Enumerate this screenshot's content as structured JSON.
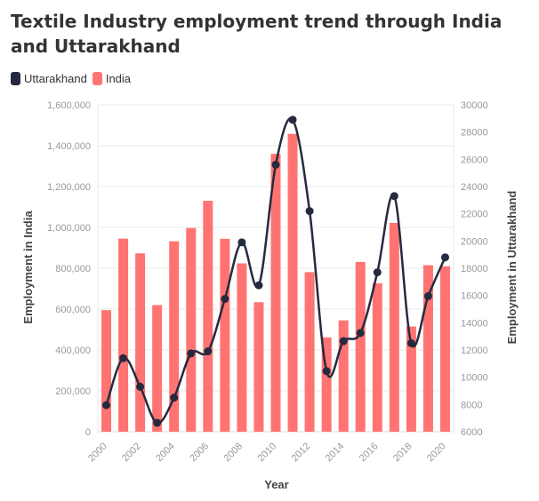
{
  "chart_data": {
    "type": "bar",
    "title": "Textile Industry employment trend through India and Uttarakhand",
    "xlabel": "Year",
    "ylabel": "Employment in India",
    "y2label": "Employment in Uttarakhand",
    "categories": [
      "2000",
      "2001",
      "2002",
      "2003",
      "2004",
      "2005",
      "2006",
      "2007",
      "2008",
      "2009",
      "2010",
      "2011",
      "2012",
      "2013",
      "2014",
      "2015",
      "2016",
      "2017",
      "2018",
      "2019",
      "2020"
    ],
    "x_tick_labels": [
      "2000",
      "2002",
      "2004",
      "2006",
      "2008",
      "2010",
      "2012",
      "2014",
      "2016",
      "2018",
      "2020"
    ],
    "ylim": [
      0,
      1600000
    ],
    "y_ticks": [
      "0",
      "200,000",
      "400,000",
      "600,000",
      "800,000",
      "1,000,000",
      "1,200,000",
      "1,400,000",
      "1,600,000"
    ],
    "y2lim": [
      6000,
      30000
    ],
    "y2_ticks": [
      "6000",
      "8000",
      "10000",
      "12000",
      "14000",
      "16000",
      "18000",
      "20000",
      "22000",
      "24000",
      "26000",
      "28000",
      "30000"
    ],
    "grid": true,
    "legend_position": "top-left",
    "series": [
      {
        "name": "India",
        "type": "bar",
        "axis": "left",
        "color": "#ff7472",
        "values": [
          595000,
          945000,
          873000,
          620000,
          932000,
          997000,
          1130000,
          944000,
          824000,
          634000,
          1360000,
          1458000,
          781000,
          462000,
          545000,
          831000,
          727000,
          1022000,
          515000,
          815000,
          810000
        ]
      },
      {
        "name": "Uttarakhand",
        "type": "line",
        "axis": "right",
        "color": "#262a3e",
        "values": [
          7950,
          11400,
          9300,
          6650,
          8500,
          11750,
          11900,
          15750,
          19900,
          16750,
          25600,
          28900,
          22200,
          10450,
          12650,
          13250,
          17700,
          23300,
          12500,
          15950,
          18800
        ]
      }
    ]
  }
}
